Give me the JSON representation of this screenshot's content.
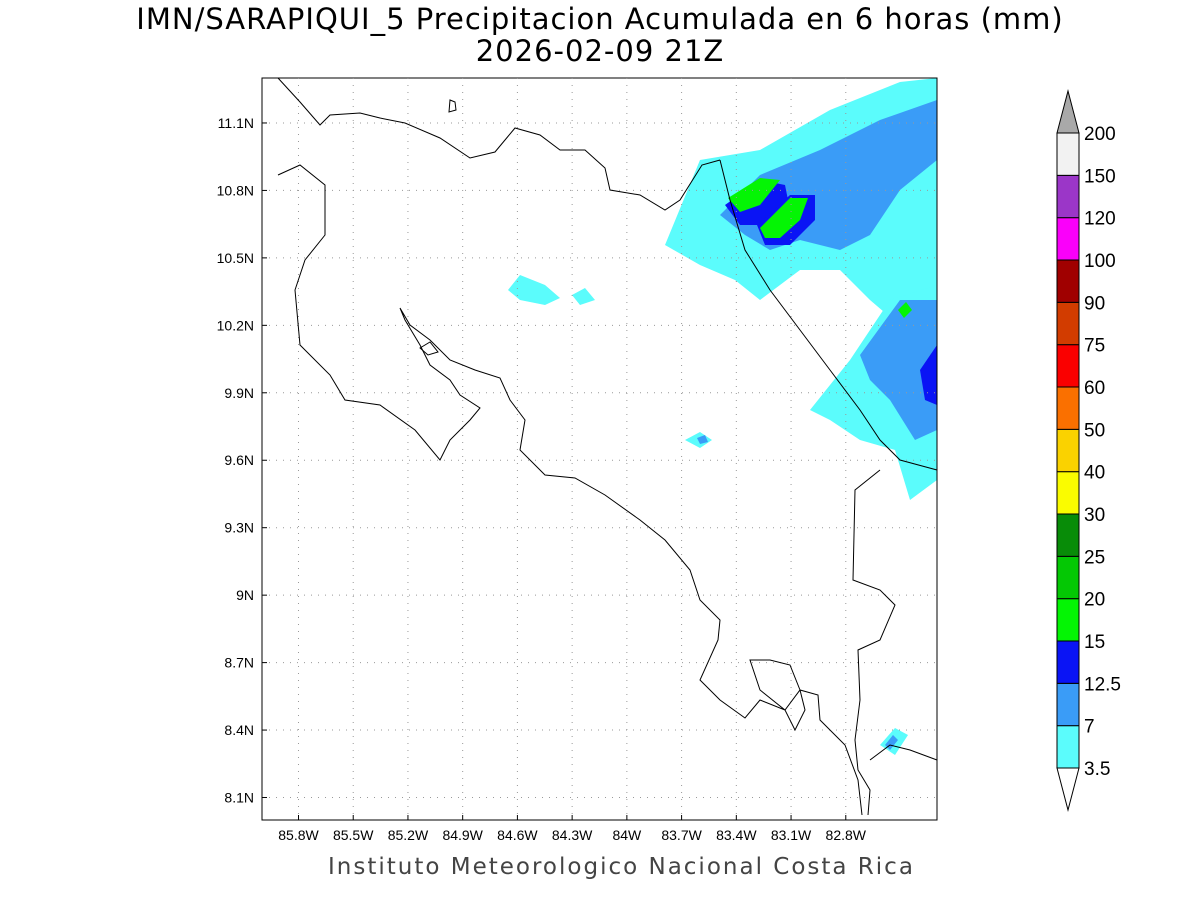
{
  "title": {
    "line1": "IMN/SARAPIQUI_5 Precipitacion Acumulada en 6 horas (mm)",
    "line2": "2026-02-09 21Z"
  },
  "footer": "Instituto Meteorologico Nacional Costa Rica",
  "map": {
    "lon_range": [
      -86.0,
      -82.3
    ],
    "lat_range": [
      8.0,
      11.3
    ],
    "x_ticks": [
      "85.8W",
      "85.5W",
      "85.2W",
      "84.9W",
      "84.6W",
      "84.3W",
      "84W",
      "83.7W",
      "83.4W",
      "83.1W",
      "82.8W"
    ],
    "y_ticks": [
      "11.1N",
      "10.8N",
      "10.5N",
      "10.2N",
      "9.9N",
      "9.6N",
      "9.3N",
      "9N",
      "8.7N",
      "8.4N",
      "8.1N"
    ],
    "grid": "dotted"
  },
  "colorbar": {
    "levels": [
      "3.5",
      "7",
      "12.5",
      "15",
      "20",
      "25",
      "30",
      "40",
      "50",
      "60",
      "75",
      "90",
      "100",
      "120",
      "150",
      "200"
    ],
    "colors": [
      "#5bfcfc",
      "#3a9cf7",
      "#0a14f5",
      "#04f504",
      "#04c804",
      "#088c08",
      "#fafc00",
      "#fad200",
      "#fa7000",
      "#fa0000",
      "#d23c00",
      "#a00000",
      "#fa00fa",
      "#9b36c8",
      "#f2f2f2"
    ],
    "over_color": "#a9a9a9",
    "under_color": "#ffffff"
  }
}
